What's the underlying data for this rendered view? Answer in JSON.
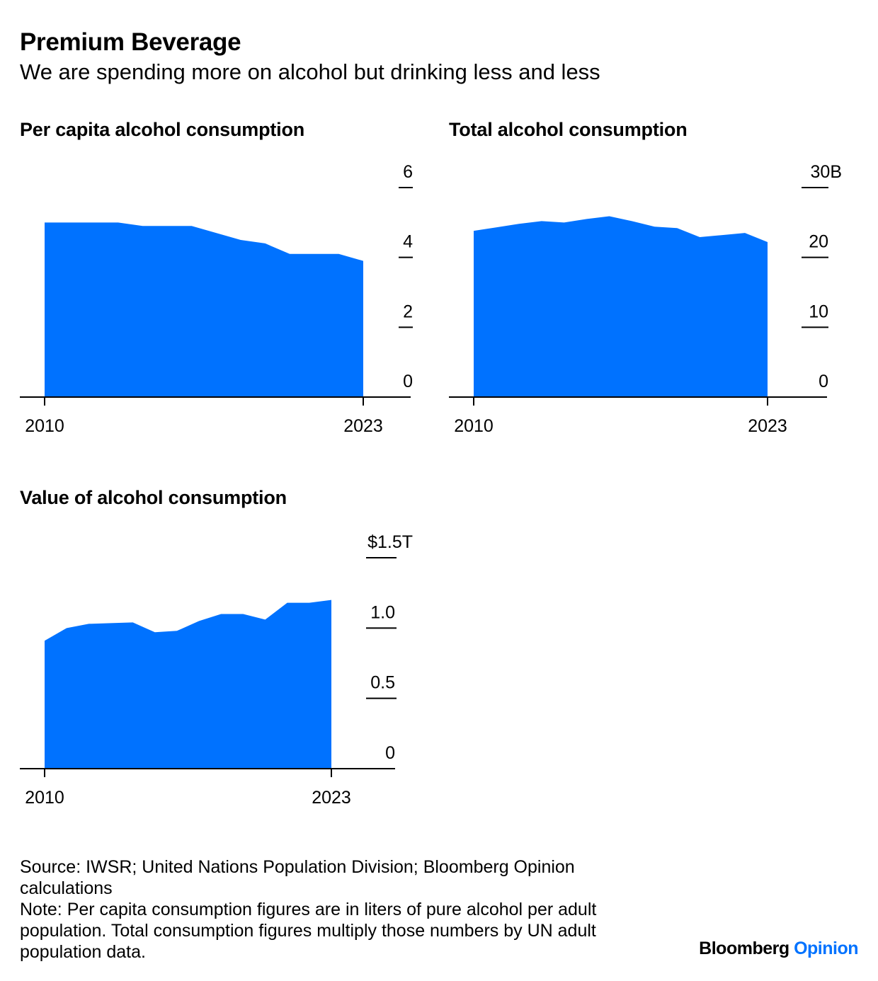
{
  "header": {
    "title": "Premium Beverage",
    "subtitle": "We are spending more on alcohol but drinking less and less"
  },
  "colors": {
    "area": "#0072ff",
    "text": "#000000",
    "axis": "#000000"
  },
  "chart_data": [
    {
      "type": "area",
      "title": "Per capita alcohol consumption",
      "x": [
        2010,
        2011,
        2012,
        2013,
        2014,
        2015,
        2016,
        2017,
        2018,
        2019,
        2020,
        2021,
        2022,
        2023
      ],
      "values": [
        5.0,
        5.0,
        5.0,
        5.0,
        4.9,
        4.9,
        4.9,
        4.7,
        4.5,
        4.4,
        4.1,
        4.1,
        4.1,
        3.9
      ],
      "ylim": [
        0,
        6
      ],
      "yticks": [
        0,
        2,
        4,
        6
      ],
      "ytick_labels": [
        "0",
        "2",
        "4",
        "6"
      ],
      "xtick_labels": [
        "2010",
        "2023"
      ],
      "xlabel": "",
      "ylabel": ""
    },
    {
      "type": "area",
      "title": "Total alcohol consumption",
      "x": [
        2010,
        2011,
        2012,
        2013,
        2014,
        2015,
        2016,
        2017,
        2018,
        2019,
        2020,
        2021,
        2022,
        2023
      ],
      "values": [
        23.8,
        24.3,
        24.8,
        25.2,
        25.0,
        25.5,
        25.9,
        25.2,
        24.4,
        24.2,
        22.9,
        23.2,
        23.5,
        22.2
      ],
      "ylim": [
        0,
        30
      ],
      "yticks": [
        0,
        10,
        20,
        30
      ],
      "ytick_labels": [
        "0",
        "10",
        "20",
        "30B"
      ],
      "xtick_labels": [
        "2010",
        "2023"
      ],
      "xlabel": "",
      "ylabel": ""
    },
    {
      "type": "area",
      "title": "Value of alcohol consumption",
      "x": [
        2010,
        2011,
        2012,
        2013,
        2014,
        2015,
        2016,
        2017,
        2018,
        2019,
        2020,
        2021,
        2022,
        2023
      ],
      "values": [
        0.91,
        1.0,
        1.03,
        1.035,
        1.04,
        0.97,
        0.98,
        1.05,
        1.1,
        1.1,
        1.06,
        1.18,
        1.18,
        1.2
      ],
      "ylim": [
        0,
        1.5
      ],
      "yticks": [
        0,
        0.5,
        1.0,
        1.5
      ],
      "ytick_labels": [
        "0",
        "0.5",
        "1.0",
        "$1.5T"
      ],
      "xtick_labels": [
        "2010",
        "2023"
      ],
      "xlabel": "",
      "ylabel": ""
    }
  ],
  "footer": {
    "source": "Source: IWSR; United Nations Population Division; Bloomberg Opinion calculations",
    "note": "Note: Per capita consumption figures are in liters of pure alcohol per adult population. Total consumption figures multiply those numbers by UN adult population data."
  },
  "logo": {
    "brand": "Bloomberg",
    "section": "Opinion"
  }
}
